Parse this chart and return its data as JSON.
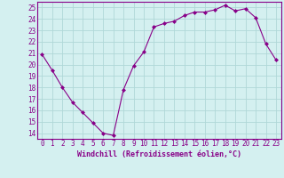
{
  "x": [
    0,
    1,
    2,
    3,
    4,
    5,
    6,
    7,
    8,
    9,
    10,
    11,
    12,
    13,
    14,
    15,
    16,
    17,
    18,
    19,
    20,
    21,
    22,
    23
  ],
  "y": [
    20.9,
    19.5,
    18.0,
    16.7,
    15.8,
    14.9,
    14.0,
    13.8,
    17.8,
    19.9,
    21.1,
    23.3,
    23.6,
    23.8,
    24.3,
    24.6,
    24.6,
    24.8,
    25.2,
    24.7,
    24.9,
    24.1,
    21.8,
    20.4
  ],
  "line_color": "#880088",
  "marker": "D",
  "marker_size": 2.0,
  "bg_color": "#d4f0f0",
  "grid_color": "#b0d8d8",
  "xlabel": "Windchill (Refroidissement éolien,°C)",
  "xlabel_color": "#880088",
  "tick_color": "#880088",
  "ylim": [
    13.5,
    25.5
  ],
  "xlim": [
    -0.5,
    23.5
  ],
  "yticks": [
    14,
    15,
    16,
    17,
    18,
    19,
    20,
    21,
    22,
    23,
    24,
    25
  ],
  "xticks": [
    0,
    1,
    2,
    3,
    4,
    5,
    6,
    7,
    8,
    9,
    10,
    11,
    12,
    13,
    14,
    15,
    16,
    17,
    18,
    19,
    20,
    21,
    22,
    23
  ],
  "tick_fontsize": 5.5,
  "xlabel_fontsize": 6.0,
  "linewidth": 0.8
}
